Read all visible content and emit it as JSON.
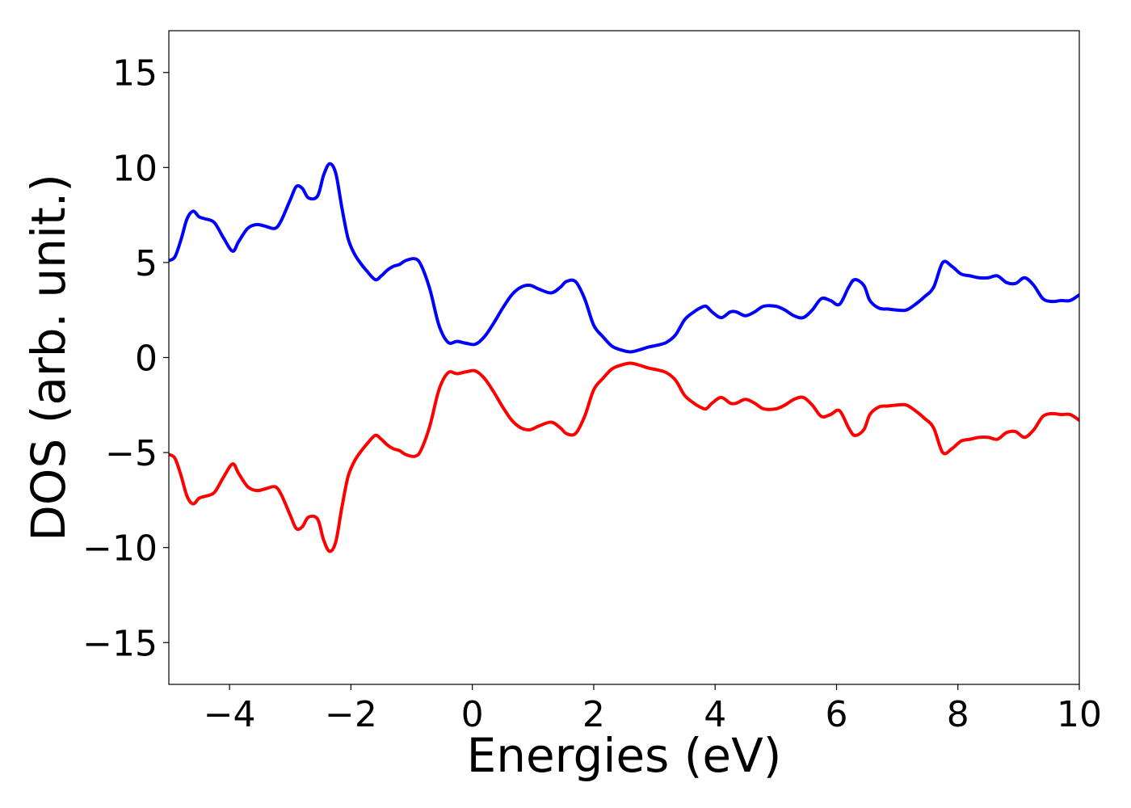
{
  "chart_data": {
    "type": "line",
    "title": "",
    "xlabel": "Energies (eV)",
    "ylabel": "DOS (arb. unit.)",
    "xlim": [
      -5,
      10
    ],
    "ylim": [
      -17.2,
      17.2
    ],
    "xticks": [
      -4,
      -2,
      0,
      2,
      4,
      6,
      8,
      10
    ],
    "xtick_labels": [
      "−4",
      "−2",
      "0",
      "2",
      "4",
      "6",
      "8",
      "10"
    ],
    "yticks": [
      15,
      10,
      5,
      0,
      -5,
      -10,
      -15
    ],
    "ytick_labels": [
      "15",
      "10",
      "5",
      "0",
      "−5",
      "−10",
      "−15"
    ],
    "grid": false,
    "legend": "none",
    "series": [
      {
        "color": "#0000ff",
        "x": [
          -5.0,
          -4.9,
          -4.8,
          -4.7,
          -4.6,
          -4.5,
          -4.4,
          -4.25,
          -4.1,
          -3.95,
          -3.85,
          -3.7,
          -3.55,
          -3.4,
          -3.25,
          -3.15,
          -3.0,
          -2.9,
          -2.8,
          -2.7,
          -2.55,
          -2.45,
          -2.35,
          -2.25,
          -2.15,
          -2.05,
          -1.95,
          -1.85,
          -1.75,
          -1.6,
          -1.5,
          -1.4,
          -1.3,
          -1.2,
          -1.1,
          -0.95,
          -0.85,
          -0.7,
          -0.55,
          -0.4,
          -0.25,
          -0.1,
          0.05,
          0.2,
          0.35,
          0.5,
          0.65,
          0.8,
          0.95,
          1.1,
          1.3,
          1.45,
          1.55,
          1.7,
          1.85,
          2.0,
          2.15,
          2.3,
          2.45,
          2.6,
          2.75,
          2.9,
          3.05,
          3.2,
          3.35,
          3.5,
          3.65,
          3.75,
          3.85,
          3.95,
          4.1,
          4.25,
          4.35,
          4.5,
          4.65,
          4.8,
          5.0,
          5.15,
          5.3,
          5.45,
          5.6,
          5.75,
          5.9,
          6.05,
          6.2,
          6.3,
          6.45,
          6.55,
          6.7,
          6.85,
          7.0,
          7.15,
          7.3,
          7.45,
          7.6,
          7.75,
          7.9,
          8.05,
          8.2,
          8.35,
          8.5,
          8.65,
          8.8,
          8.95,
          9.1,
          9.25,
          9.4,
          9.55,
          9.7,
          9.85,
          10.0
        ],
        "values": [
          5.1,
          5.3,
          6.2,
          7.3,
          7.7,
          7.4,
          7.3,
          7.1,
          6.3,
          5.6,
          6.1,
          6.8,
          7.0,
          6.9,
          6.8,
          7.2,
          8.3,
          9.0,
          8.9,
          8.4,
          8.5,
          9.6,
          10.2,
          9.7,
          7.9,
          6.3,
          5.5,
          5.0,
          4.6,
          4.1,
          4.3,
          4.6,
          4.8,
          4.9,
          5.1,
          5.2,
          4.9,
          3.6,
          1.7,
          0.8,
          0.85,
          0.75,
          0.7,
          1.1,
          1.8,
          2.6,
          3.3,
          3.7,
          3.8,
          3.6,
          3.4,
          3.7,
          4.0,
          4.0,
          3.1,
          1.7,
          1.1,
          0.6,
          0.4,
          0.3,
          0.4,
          0.55,
          0.65,
          0.8,
          1.2,
          2.0,
          2.4,
          2.6,
          2.7,
          2.4,
          2.1,
          2.4,
          2.4,
          2.2,
          2.4,
          2.7,
          2.7,
          2.5,
          2.2,
          2.1,
          2.5,
          3.1,
          3.0,
          2.8,
          3.7,
          4.1,
          3.8,
          3.0,
          2.6,
          2.55,
          2.5,
          2.5,
          2.8,
          3.2,
          3.7,
          5.0,
          4.8,
          4.4,
          4.3,
          4.2,
          4.2,
          4.3,
          3.95,
          3.9,
          4.2,
          3.8,
          3.1,
          2.95,
          3.0,
          3.0,
          3.3
        ]
      },
      {
        "color": "#ff0000",
        "x": [
          -5.0,
          -4.9,
          -4.8,
          -4.7,
          -4.6,
          -4.5,
          -4.4,
          -4.25,
          -4.1,
          -3.95,
          -3.85,
          -3.7,
          -3.55,
          -3.4,
          -3.25,
          -3.15,
          -3.0,
          -2.9,
          -2.8,
          -2.7,
          -2.55,
          -2.45,
          -2.35,
          -2.25,
          -2.15,
          -2.05,
          -1.95,
          -1.85,
          -1.75,
          -1.6,
          -1.5,
          -1.4,
          -1.3,
          -1.2,
          -1.1,
          -0.95,
          -0.85,
          -0.7,
          -0.55,
          -0.4,
          -0.25,
          -0.1,
          0.05,
          0.2,
          0.35,
          0.5,
          0.65,
          0.8,
          0.95,
          1.1,
          1.3,
          1.45,
          1.55,
          1.7,
          1.85,
          2.0,
          2.15,
          2.3,
          2.45,
          2.6,
          2.75,
          2.9,
          3.05,
          3.2,
          3.35,
          3.5,
          3.65,
          3.75,
          3.85,
          3.95,
          4.1,
          4.25,
          4.35,
          4.5,
          4.65,
          4.8,
          5.0,
          5.15,
          5.3,
          5.45,
          5.6,
          5.75,
          5.9,
          6.05,
          6.2,
          6.3,
          6.45,
          6.55,
          6.7,
          6.85,
          7.0,
          7.15,
          7.3,
          7.45,
          7.6,
          7.75,
          7.9,
          8.05,
          8.2,
          8.35,
          8.5,
          8.65,
          8.8,
          8.95,
          9.1,
          9.25,
          9.4,
          9.55,
          9.7,
          9.85,
          10.0
        ],
        "values": [
          -5.1,
          -5.3,
          -6.2,
          -7.3,
          -7.7,
          -7.4,
          -7.3,
          -7.1,
          -6.3,
          -5.6,
          -6.1,
          -6.8,
          -7.0,
          -6.9,
          -6.8,
          -7.2,
          -8.3,
          -9.0,
          -8.9,
          -8.4,
          -8.5,
          -9.6,
          -10.2,
          -9.7,
          -7.9,
          -6.3,
          -5.5,
          -5.0,
          -4.6,
          -4.1,
          -4.3,
          -4.6,
          -4.8,
          -4.9,
          -5.1,
          -5.2,
          -4.9,
          -3.6,
          -1.7,
          -0.8,
          -0.85,
          -0.75,
          -0.7,
          -1.1,
          -1.8,
          -2.6,
          -3.3,
          -3.7,
          -3.8,
          -3.6,
          -3.4,
          -3.7,
          -4.0,
          -4.0,
          -3.1,
          -1.7,
          -1.1,
          -0.6,
          -0.4,
          -0.3,
          -0.4,
          -0.55,
          -0.65,
          -0.8,
          -1.2,
          -2.0,
          -2.4,
          -2.6,
          -2.7,
          -2.4,
          -2.1,
          -2.4,
          -2.4,
          -2.2,
          -2.4,
          -2.7,
          -2.7,
          -2.5,
          -2.2,
          -2.1,
          -2.5,
          -3.1,
          -3.0,
          -2.8,
          -3.7,
          -4.1,
          -3.8,
          -3.0,
          -2.6,
          -2.55,
          -2.5,
          -2.5,
          -2.8,
          -3.2,
          -3.7,
          -5.0,
          -4.8,
          -4.4,
          -4.3,
          -4.2,
          -4.2,
          -4.3,
          -3.95,
          -3.9,
          -4.2,
          -3.8,
          -3.1,
          -2.95,
          -3.0,
          -3.0,
          -3.3
        ]
      }
    ]
  }
}
